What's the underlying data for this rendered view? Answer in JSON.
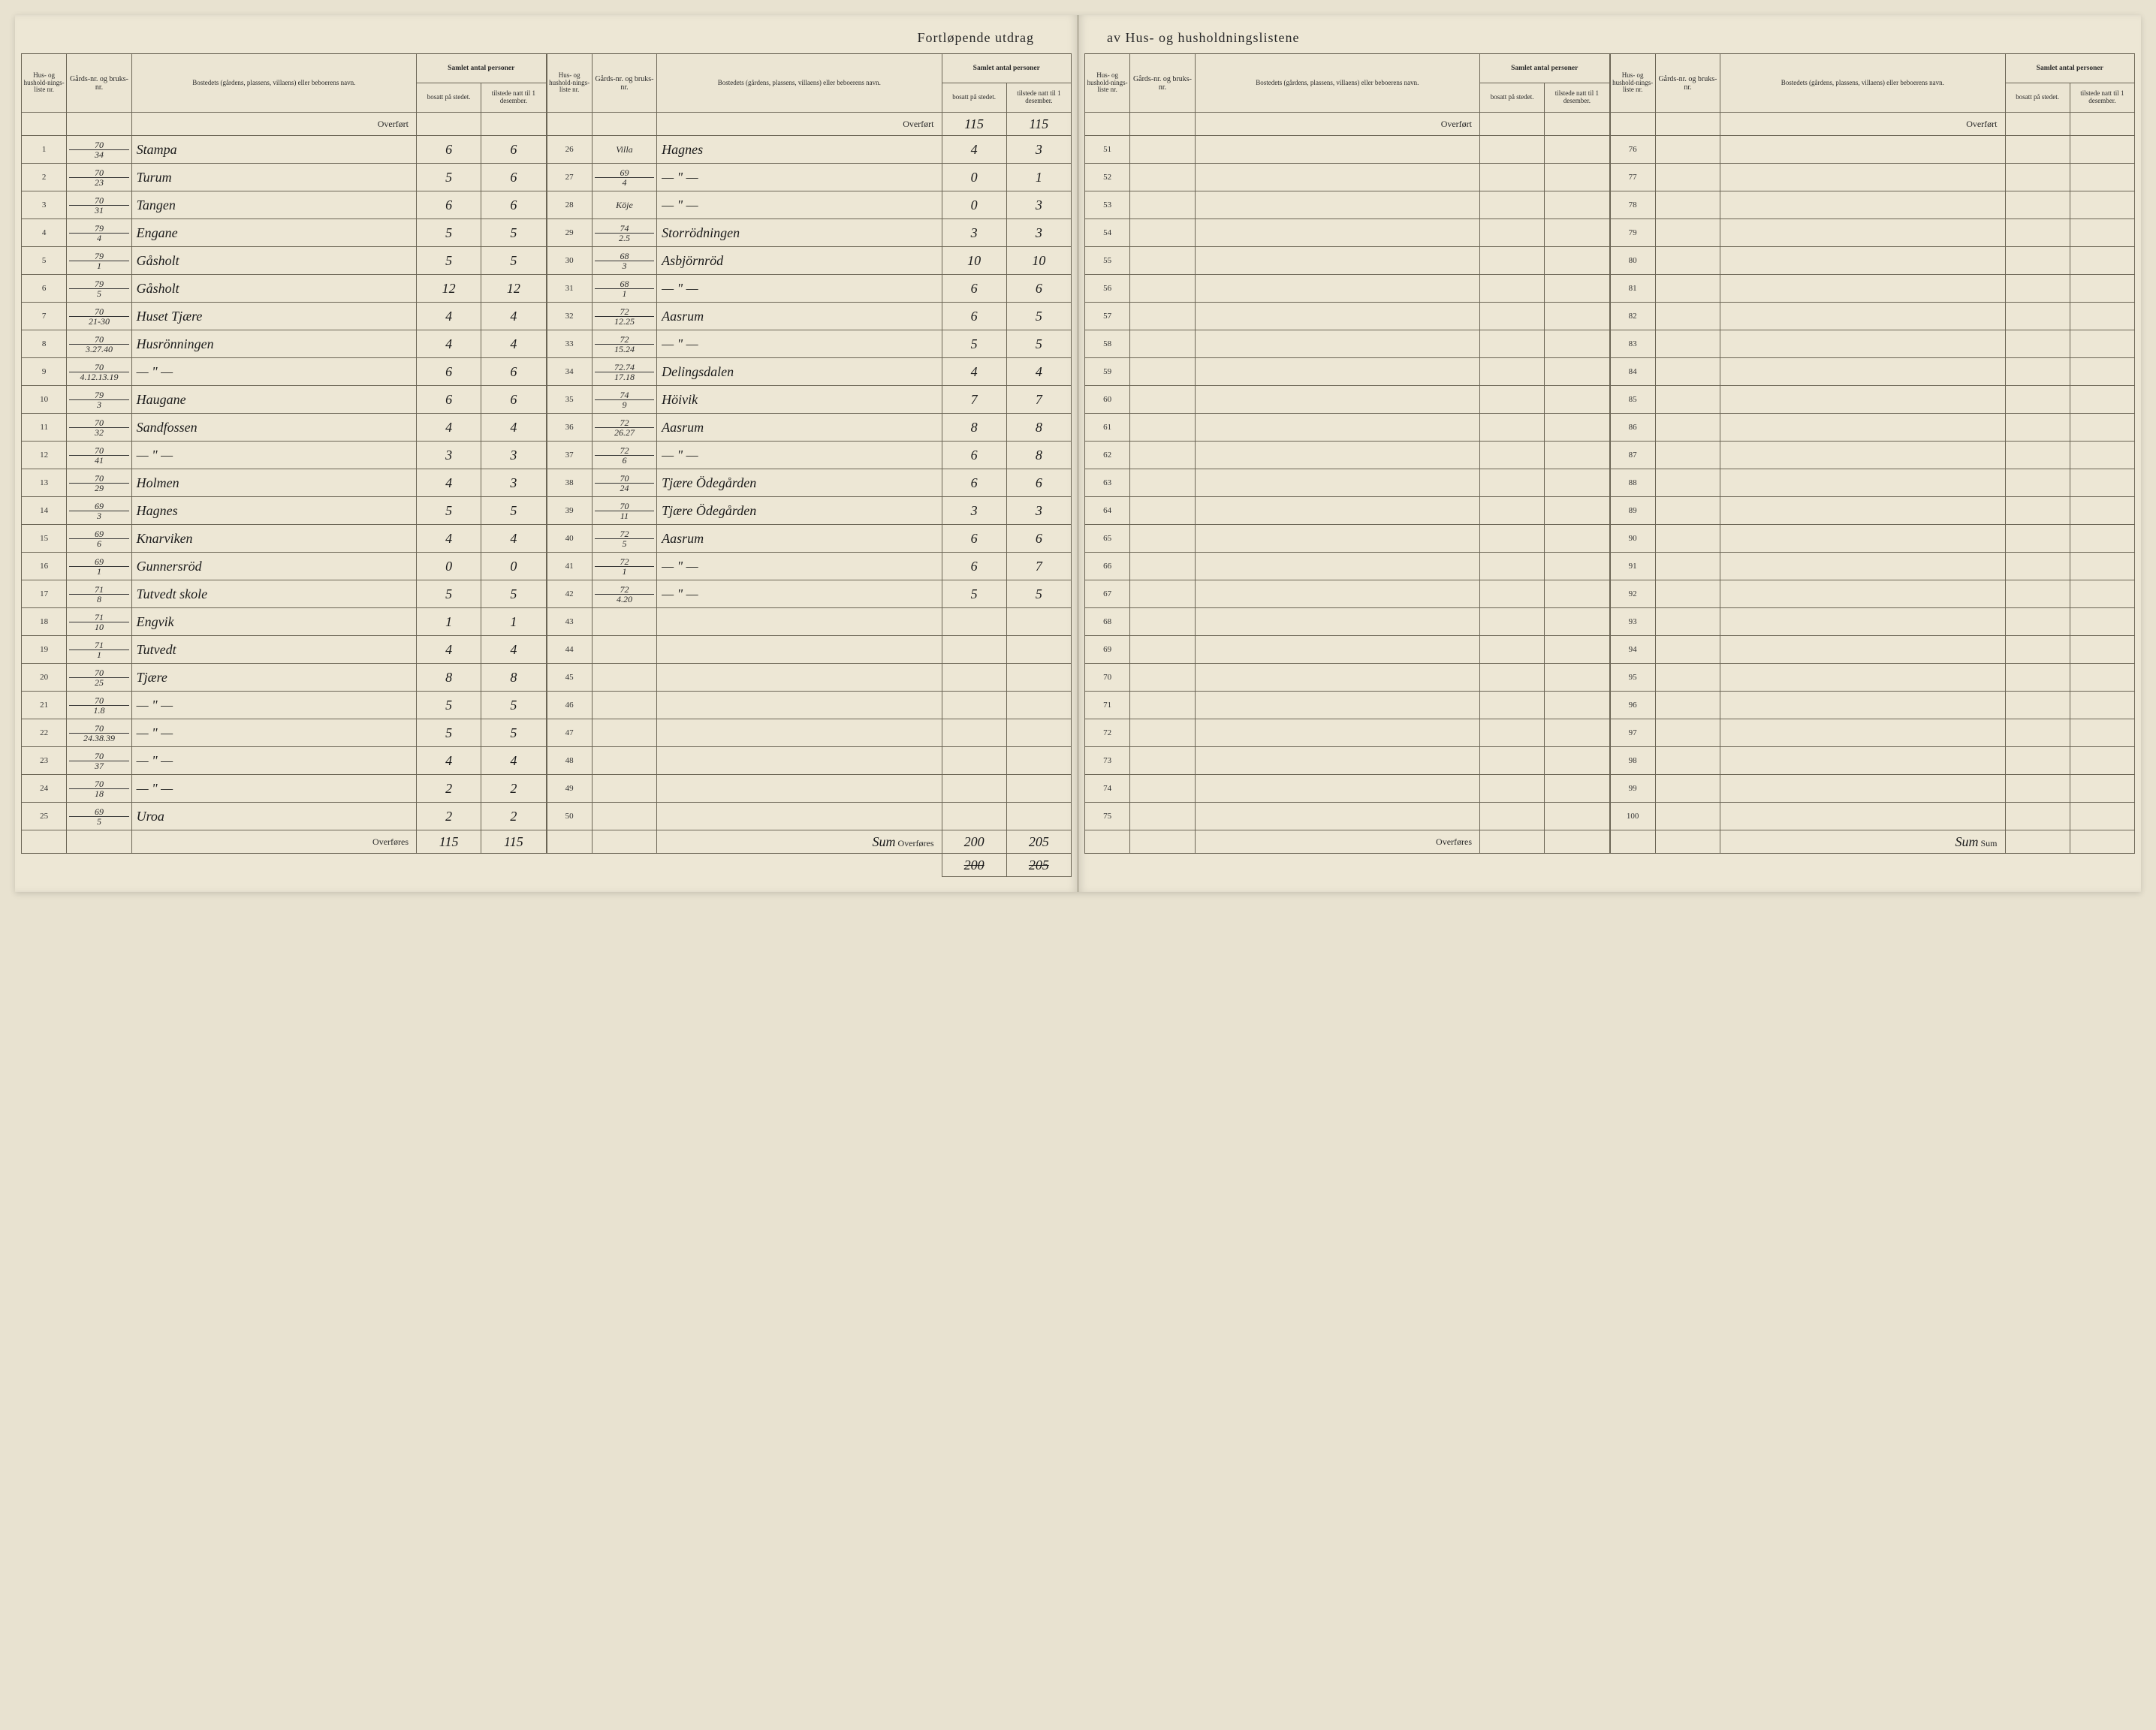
{
  "title_left": "Fortløpende utdrag",
  "title_right": "av Hus- og husholdningslistene",
  "headers": {
    "liste": "Hus- og hushold-nings-liste nr.",
    "gard": "Gårds-nr. og bruks-nr.",
    "bosted": "Bostedets (gårdens, plassens, villaens) eller beboerens navn.",
    "samlet": "Samlet antal personer",
    "bosatt": "bosatt på stedet.",
    "tilstede": "tilstede natt til 1 desember."
  },
  "overf_label": "Overført",
  "overf_label_bottom": "Overføres",
  "sum_label": "Sum",
  "block_a": {
    "overf": {
      "bosatt": "",
      "tilstede": ""
    },
    "rows": [
      {
        "n": "1",
        "g_top": "70",
        "g_bot": "34",
        "name": "Stampa",
        "b": "6",
        "t": "6"
      },
      {
        "n": "2",
        "g_top": "70",
        "g_bot": "23",
        "name": "Turum",
        "b": "5",
        "t": "6"
      },
      {
        "n": "3",
        "g_top": "70",
        "g_bot": "31",
        "name": "Tangen",
        "b": "6",
        "t": "6"
      },
      {
        "n": "4",
        "g_top": "79",
        "g_bot": "4",
        "name": "Engane",
        "b": "5",
        "t": "5"
      },
      {
        "n": "5",
        "g_top": "79",
        "g_bot": "1",
        "name": "Gåsholt",
        "b": "5",
        "t": "5"
      },
      {
        "n": "6",
        "g_top": "79",
        "g_bot": "5",
        "name": "Gåsholt",
        "b": "12",
        "t": "12"
      },
      {
        "n": "7",
        "g_top": "70",
        "g_bot": "21-30",
        "name": "Huset Tjære",
        "b": "4",
        "t": "4"
      },
      {
        "n": "8",
        "g_top": "70",
        "g_bot": "3.27.40",
        "name": "Husrönningen",
        "b": "4",
        "t": "4"
      },
      {
        "n": "9",
        "g_top": "70",
        "g_bot": "4.12.13.19",
        "name": "— \" —",
        "b": "6",
        "t": "6"
      },
      {
        "n": "10",
        "g_top": "79",
        "g_bot": "3",
        "name": "Haugane",
        "b": "6",
        "t": "6"
      },
      {
        "n": "11",
        "g_top": "70",
        "g_bot": "32",
        "name": "Sandfossen",
        "b": "4",
        "t": "4"
      },
      {
        "n": "12",
        "g_top": "70",
        "g_bot": "41",
        "name": "— \" —",
        "b": "3",
        "t": "3"
      },
      {
        "n": "13",
        "g_top": "70",
        "g_bot": "29",
        "name": "Holmen",
        "b": "4",
        "t": "3"
      },
      {
        "n": "14",
        "g_top": "69",
        "g_bot": "3",
        "name": "Hagnes",
        "b": "5",
        "t": "5"
      },
      {
        "n": "15",
        "g_top": "69",
        "g_bot": "6",
        "name": "Knarviken",
        "b": "4",
        "t": "4"
      },
      {
        "n": "16",
        "g_top": "69",
        "g_bot": "1",
        "name": "Gunnersröd",
        "b": "0",
        "t": "0"
      },
      {
        "n": "17",
        "g_top": "71",
        "g_bot": "8",
        "name": "Tutvedt skole",
        "b": "5",
        "t": "5"
      },
      {
        "n": "18",
        "g_top": "71",
        "g_bot": "10",
        "name": "Engvik",
        "b": "1",
        "t": "1"
      },
      {
        "n": "19",
        "g_top": "71",
        "g_bot": "1",
        "name": "Tutvedt",
        "b": "4",
        "t": "4"
      },
      {
        "n": "20",
        "g_top": "70",
        "g_bot": "25",
        "name": "Tjære",
        "b": "8",
        "t": "8"
      },
      {
        "n": "21",
        "g_top": "70",
        "g_bot": "1.8",
        "name": "— \" —",
        "b": "5",
        "t": "5"
      },
      {
        "n": "22",
        "g_top": "70",
        "g_bot": "24.38.39",
        "name": "— \" —",
        "b": "5",
        "t": "5"
      },
      {
        "n": "23",
        "g_top": "70",
        "g_bot": "37",
        "name": "— \" —",
        "b": "4",
        "t": "4"
      },
      {
        "n": "24",
        "g_top": "70",
        "g_bot": "18",
        "name": "— \" —",
        "b": "2",
        "t": "2"
      },
      {
        "n": "25",
        "g_top": "69",
        "g_bot": "5",
        "name": "Uroa",
        "b": "2",
        "t": "2"
      }
    ],
    "footer": {
      "b": "115",
      "t": "115"
    }
  },
  "block_b": {
    "overf": {
      "bosatt": "115",
      "tilstede": "115"
    },
    "rows": [
      {
        "n": "26",
        "g_top": "",
        "g_bot": "Villa",
        "name": "Hagnes",
        "b": "4",
        "t": "3"
      },
      {
        "n": "27",
        "g_top": "69",
        "g_bot": "4",
        "name": "— \" —",
        "b": "0",
        "t": "1"
      },
      {
        "n": "28",
        "g_top": "",
        "g_bot": "Köje",
        "name": "— \" —",
        "b": "0",
        "t": "3"
      },
      {
        "n": "29",
        "g_top": "74",
        "g_bot": "2.5",
        "name": "Storrödningen",
        "b": "3",
        "t": "3"
      },
      {
        "n": "30",
        "g_top": "68",
        "g_bot": "3",
        "name": "Asbjörnröd",
        "b": "10",
        "t": "10"
      },
      {
        "n": "31",
        "g_top": "68",
        "g_bot": "1",
        "name": "— \" —",
        "b": "6",
        "t": "6"
      },
      {
        "n": "32",
        "g_top": "72",
        "g_bot": "12.25",
        "name": "Aasrum",
        "b": "6",
        "t": "5"
      },
      {
        "n": "33",
        "g_top": "72",
        "g_bot": "15.24",
        "name": "— \" —",
        "b": "5",
        "t": "5"
      },
      {
        "n": "34",
        "g_top": "72.74",
        "g_bot": "17.18",
        "name": "Delingsdalen",
        "b": "4",
        "t": "4"
      },
      {
        "n": "35",
        "g_top": "74",
        "g_bot": "9",
        "name": "Höivik",
        "b": "7",
        "t": "7"
      },
      {
        "n": "36",
        "g_top": "72",
        "g_bot": "26.27",
        "name": "Aasrum",
        "b": "8",
        "t": "8"
      },
      {
        "n": "37",
        "g_top": "72",
        "g_bot": "6",
        "name": "— \" —",
        "b": "6",
        "t": "8"
      },
      {
        "n": "38",
        "g_top": "70",
        "g_bot": "24",
        "name": "Tjære Ödegården",
        "b": "6",
        "t": "6"
      },
      {
        "n": "39",
        "g_top": "70",
        "g_bot": "11",
        "name": "Tjære Ödegården",
        "b": "3",
        "t": "3"
      },
      {
        "n": "40",
        "g_top": "72",
        "g_bot": "5",
        "name": "Aasrum",
        "b": "6",
        "t": "6"
      },
      {
        "n": "41",
        "g_top": "72",
        "g_bot": "1",
        "name": "— \" —",
        "b": "6",
        "t": "7"
      },
      {
        "n": "42",
        "g_top": "72",
        "g_bot": "4.20",
        "name": "— \" —",
        "b": "5",
        "t": "5"
      },
      {
        "n": "43",
        "g_top": "",
        "g_bot": "",
        "name": "",
        "b": "",
        "t": ""
      },
      {
        "n": "44",
        "g_top": "",
        "g_bot": "",
        "name": "",
        "b": "",
        "t": ""
      },
      {
        "n": "45",
        "g_top": "",
        "g_bot": "",
        "name": "",
        "b": "",
        "t": ""
      },
      {
        "n": "46",
        "g_top": "",
        "g_bot": "",
        "name": "",
        "b": "",
        "t": ""
      },
      {
        "n": "47",
        "g_top": "",
        "g_bot": "",
        "name": "",
        "b": "",
        "t": ""
      },
      {
        "n": "48",
        "g_top": "",
        "g_bot": "",
        "name": "",
        "b": "",
        "t": ""
      },
      {
        "n": "49",
        "g_top": "",
        "g_bot": "",
        "name": "",
        "b": "",
        "t": ""
      },
      {
        "n": "50",
        "g_top": "",
        "g_bot": "",
        "name": "",
        "b": "",
        "t": ""
      }
    ],
    "footer_label": "Sum",
    "footer": {
      "b": "200",
      "t": "205"
    },
    "footer2": {
      "b": "200",
      "t": "205"
    }
  },
  "block_c": {
    "overf": {
      "bosatt": "",
      "tilstede": ""
    },
    "rows": [
      {
        "n": "51"
      },
      {
        "n": "52"
      },
      {
        "n": "53"
      },
      {
        "n": "54"
      },
      {
        "n": "55"
      },
      {
        "n": "56"
      },
      {
        "n": "57"
      },
      {
        "n": "58"
      },
      {
        "n": "59"
      },
      {
        "n": "60"
      },
      {
        "n": "61"
      },
      {
        "n": "62"
      },
      {
        "n": "63"
      },
      {
        "n": "64"
      },
      {
        "n": "65"
      },
      {
        "n": "66"
      },
      {
        "n": "67"
      },
      {
        "n": "68"
      },
      {
        "n": "69"
      },
      {
        "n": "70"
      },
      {
        "n": "71"
      },
      {
        "n": "72"
      },
      {
        "n": "73"
      },
      {
        "n": "74"
      },
      {
        "n": "75"
      }
    ],
    "footer": {
      "b": "",
      "t": ""
    }
  },
  "block_d": {
    "overf": {
      "bosatt": "",
      "tilstede": ""
    },
    "rows": [
      {
        "n": "76"
      },
      {
        "n": "77"
      },
      {
        "n": "78"
      },
      {
        "n": "79"
      },
      {
        "n": "80"
      },
      {
        "n": "81"
      },
      {
        "n": "82"
      },
      {
        "n": "83"
      },
      {
        "n": "84"
      },
      {
        "n": "85"
      },
      {
        "n": "86"
      },
      {
        "n": "87"
      },
      {
        "n": "88"
      },
      {
        "n": "89"
      },
      {
        "n": "90"
      },
      {
        "n": "91"
      },
      {
        "n": "92"
      },
      {
        "n": "93"
      },
      {
        "n": "94"
      },
      {
        "n": "95"
      },
      {
        "n": "96"
      },
      {
        "n": "97"
      },
      {
        "n": "98"
      },
      {
        "n": "99"
      },
      {
        "n": "100"
      }
    ],
    "footer_label": "Sum",
    "footer": {
      "b": "",
      "t": ""
    }
  }
}
